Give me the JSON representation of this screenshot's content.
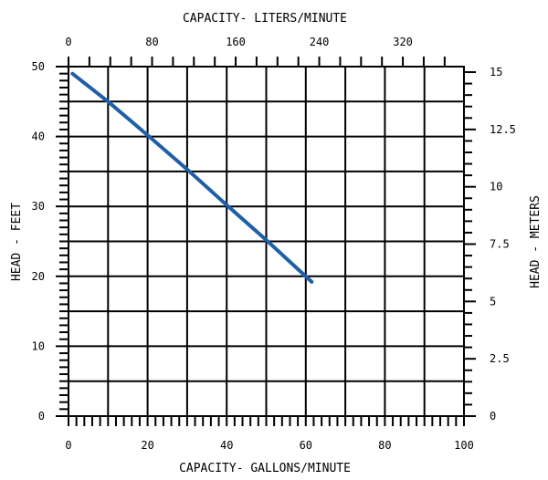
{
  "chart_data": {
    "type": "line",
    "title": "",
    "xlabel": "CAPACITY- GALLONS/MINUTE",
    "ylabel": "HEAD - FEET",
    "x2label": "CAPACITY- LITERS/MINUTE",
    "y2label": "HEAD - METERS",
    "xlim": [
      0,
      100
    ],
    "ylim": [
      0,
      50
    ],
    "x2lim": [
      0,
      378.5
    ],
    "y2lim": [
      0,
      15.24
    ],
    "x_ticks": [
      "0",
      "20",
      "40",
      "60",
      "80",
      "100"
    ],
    "y_ticks": [
      "0",
      "10",
      "20",
      "30",
      "40",
      "50"
    ],
    "x2_ticks": [
      {
        "value": 0,
        "label": "0"
      },
      {
        "value": 80,
        "label": "80"
      },
      {
        "value": 160,
        "label": "160"
      },
      {
        "value": 240,
        "label": "240"
      },
      {
        "value": 320,
        "label": "320"
      }
    ],
    "y2_ticks": [
      {
        "value": 0,
        "label": "0"
      },
      {
        "value": 2.5,
        "label": "2.5"
      },
      {
        "value": 5,
        "label": "5"
      },
      {
        "value": 7.5,
        "label": "7.5"
      },
      {
        "value": 10,
        "label": "10"
      },
      {
        "value": 12.5,
        "label": "12.5"
      },
      {
        "value": 15,
        "label": "15"
      }
    ],
    "grid": true,
    "series": [
      {
        "color": "#1f5fa8",
        "x": [
          1,
          10,
          20,
          30,
          40,
          50,
          61.5
        ],
        "y": [
          49,
          45,
          40.2,
          35.3,
          30.2,
          25.2,
          19.2
        ]
      }
    ]
  }
}
